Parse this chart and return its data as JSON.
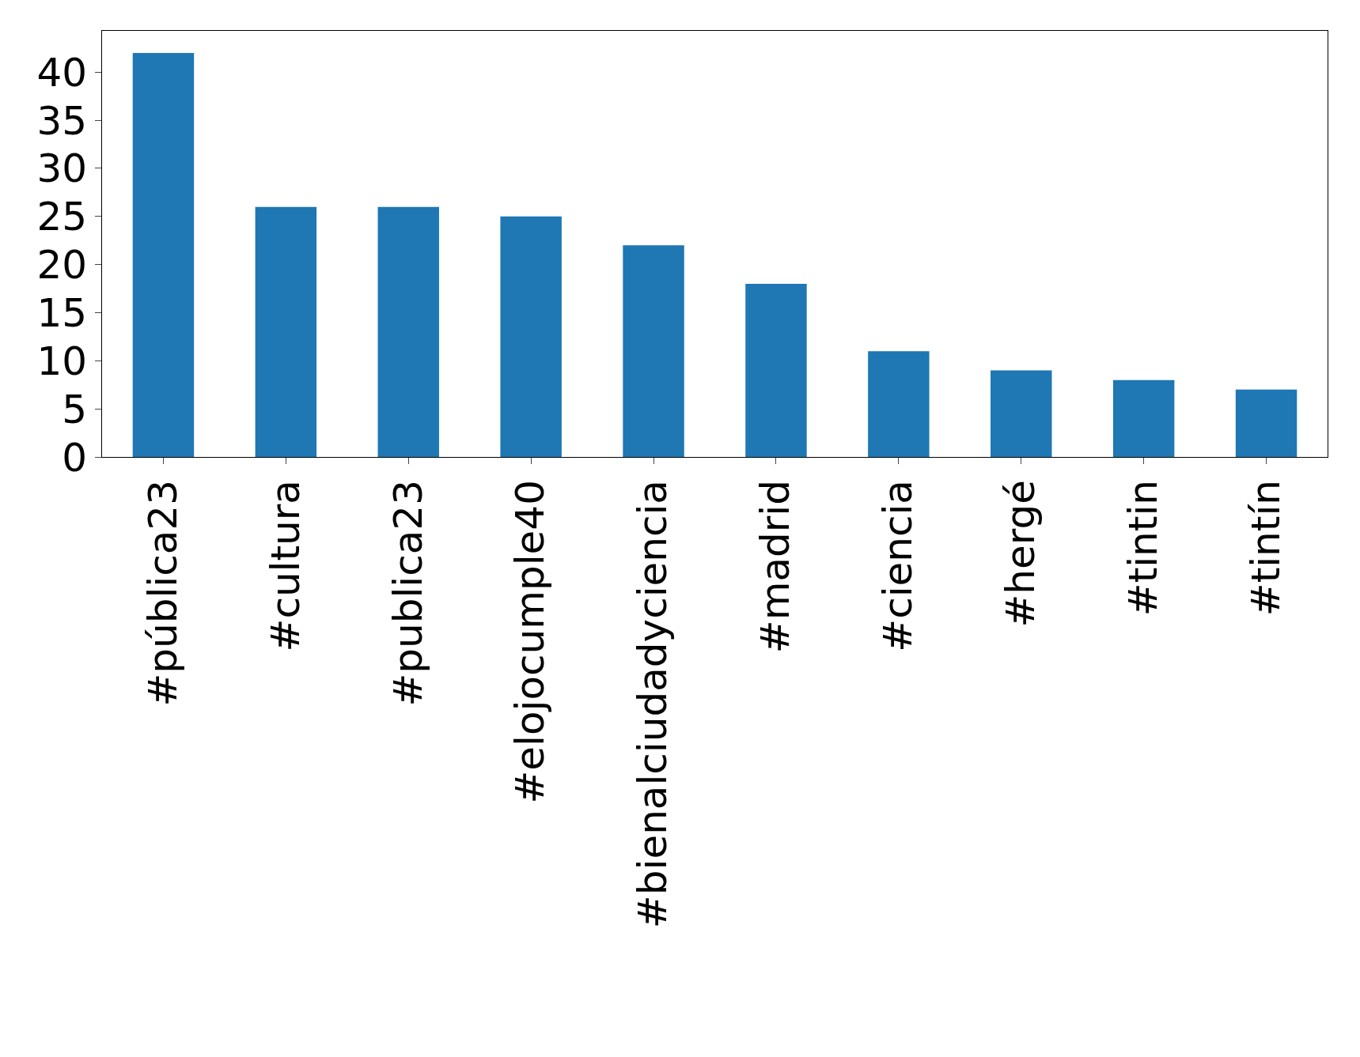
{
  "chart_data": {
    "type": "bar",
    "categories": [
      "#pública23",
      "#cultura",
      "#publica23",
      "#elojocumple40",
      "#bienalciudadyciencia",
      "#madrid",
      "#ciencia",
      "#hergé",
      "#tintin",
      "#tintín"
    ],
    "values": [
      42,
      26,
      26,
      25,
      22,
      18,
      11,
      9,
      8,
      7
    ],
    "color": "#1f77b4",
    "ylim": [
      0,
      44.3
    ],
    "yticks": [
      0,
      5,
      10,
      15,
      20,
      25,
      30,
      35,
      40
    ],
    "grid": false,
    "legend": false
  }
}
